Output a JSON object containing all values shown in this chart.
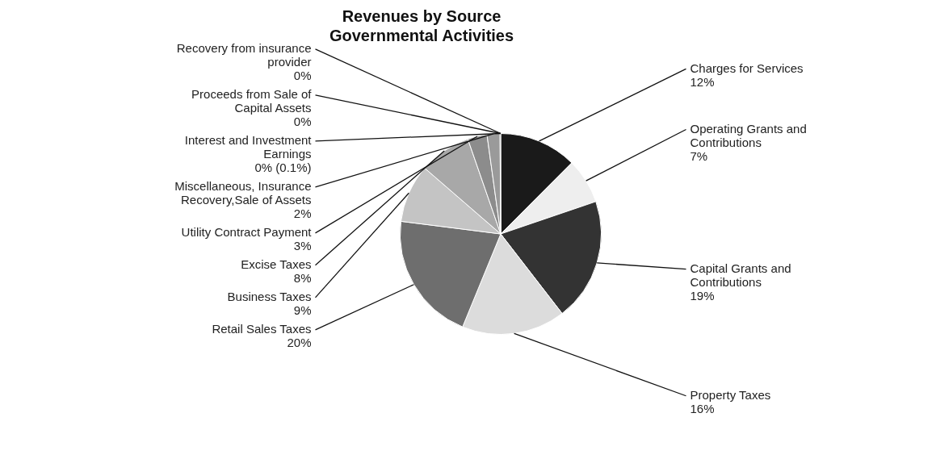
{
  "chart_data": {
    "type": "pie",
    "title": "Revenues by Source",
    "subtitle": "Governmental Activities",
    "categories": [
      "Charges for Services",
      "Operating Grants and Contributions",
      "Capital Grants and Contributions",
      "Property Taxes",
      "Retail Sales Taxes",
      "Business Taxes",
      "Excise Taxes",
      "Utility Contract Payment",
      "Miscellaneous, Insurance Recovery,Sale of Assets",
      "Interest and Investment Earnings",
      "Recovery from insurance provider",
      "Proceeds from Sale of Capital Assets"
    ],
    "values": [
      12,
      7,
      19,
      16,
      20,
      9,
      8,
      3,
      2,
      0.1,
      0,
      0
    ],
    "value_labels": [
      "12%",
      "7%",
      "19%",
      "16%",
      "20%",
      "9%",
      "8%",
      "3%",
      "2%",
      "0% (0.1%)",
      "0%",
      "0%"
    ],
    "colors": [
      "#1a1a1a",
      "#eeeeee",
      "#333333",
      "#dcdcdc",
      "#6e6e6e",
      "#c4c4c4",
      "#a8a8a8",
      "#8c8c8c",
      "#9a9a9a",
      "#000000",
      "#555555",
      "#3a3a8a"
    ]
  }
}
